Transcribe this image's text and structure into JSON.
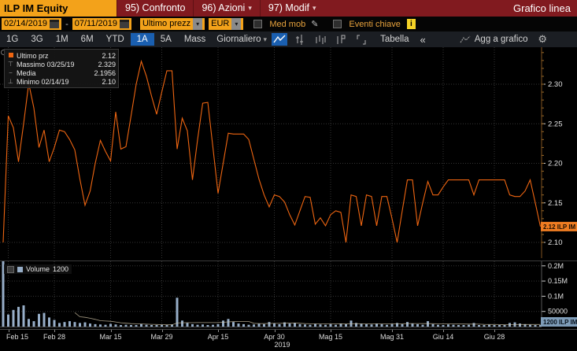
{
  "window": {
    "title_right": "Grafico linea"
  },
  "header": {
    "ticker": "ILP IM Equity",
    "menu": [
      {
        "label": "95) Confronto",
        "dropdown": false
      },
      {
        "label": "96) Azioni",
        "dropdown": true
      },
      {
        "label": "97) Modif",
        "dropdown": true
      }
    ]
  },
  "controls": {
    "date_from": "02/14/2019",
    "range_separator": "-",
    "date_to": "07/11/2019",
    "price_field": "Ultimo prezz",
    "currency": "EUR",
    "med_mob_label": "Med mob",
    "eventi_label": "Eventi chiave"
  },
  "toolbar": {
    "tabs": [
      "1G",
      "3G",
      "1M",
      "6M",
      "YTD",
      "1A",
      "5A",
      "Mass"
    ],
    "selected_tab": "1A",
    "period": "Giornaliero",
    "table_label": "Tabella",
    "add_chart_label": "Agg a grafico"
  },
  "icons": {
    "dropdown": "▾",
    "pencil": "✎",
    "info": "i",
    "collapse": "«",
    "gear": "⚙"
  },
  "legend": {
    "items": [
      {
        "label": "Ultimo prz",
        "value": "2.12"
      },
      {
        "label": "Massimo 03/25/19",
        "value": "2.329"
      },
      {
        "label": "Media",
        "value": "2.1956"
      },
      {
        "label": "Minimo 02/14/19",
        "value": "2.10"
      }
    ]
  },
  "volume_legend": {
    "label": "Volume",
    "value": "1200"
  },
  "price_badge": "2.12 ILP IM",
  "volume_badge": "1200 ILP IM",
  "colors": {
    "series": "#ee6511",
    "badge": "#ef7d22",
    "volume_bars": "#97aec8",
    "volume_badge_bg": "#7e9cb8",
    "accent_amber": "#f3a21a",
    "selected_blue": "#1a5fb0",
    "grid": "#343434"
  },
  "chart_data": {
    "type": "line",
    "title": "ILP IM Equity - Ultimo prezzo, 1A Giornaliero, EUR",
    "year_label": "2019",
    "x_ticks": [
      {
        "label": "Feb 15",
        "day": 1
      },
      {
        "label": "Feb 28",
        "day": 10
      },
      {
        "label": "Mar 15",
        "day": 21
      },
      {
        "label": "Mar 29",
        "day": 31
      },
      {
        "label": "Apr 15",
        "day": 42
      },
      {
        "label": "Apr 30",
        "day": 53
      },
      {
        "label": "Mag 15",
        "day": 64
      },
      {
        "label": "Mag 31",
        "day": 76
      },
      {
        "label": "Giu 14",
        "day": 86
      },
      {
        "label": "Giu 28",
        "day": 96
      }
    ],
    "year_anchor_day": 53,
    "price_axis_ticks": [
      2.3,
      2.25,
      2.2,
      2.15,
      2.1
    ],
    "price_ylim": [
      2.09,
      2.345
    ],
    "last_price": 2.12,
    "max": {
      "date": "03/25/19",
      "value": 2.329
    },
    "min": {
      "date": "02/14/19",
      "value": 2.1
    },
    "mean": 2.1956,
    "last_volume": 1200,
    "volume_axis_ticks": [
      "0.2M",
      "0.15M",
      "0.1M",
      "50000"
    ],
    "volume_tick_values": [
      200000,
      150000,
      100000,
      50000
    ],
    "series_color": "#ee6511",
    "volume_color": "#97aec8",
    "dates": [
      "02/14",
      "02/15",
      "02/18",
      "02/19",
      "02/20",
      "02/21",
      "02/22",
      "02/25",
      "02/26",
      "02/27",
      "02/28",
      "03/01",
      "03/04",
      "03/05",
      "03/06",
      "03/07",
      "03/08",
      "03/11",
      "03/12",
      "03/13",
      "03/14",
      "03/15",
      "03/18",
      "03/19",
      "03/20",
      "03/21",
      "03/22",
      "03/25",
      "03/26",
      "03/27",
      "03/28",
      "03/29",
      "04/01",
      "04/02",
      "04/03",
      "04/04",
      "04/05",
      "04/08",
      "04/09",
      "04/10",
      "04/11",
      "04/12",
      "04/15",
      "04/16",
      "04/17",
      "04/18",
      "04/19",
      "04/22",
      "04/23",
      "04/24",
      "04/25",
      "04/26",
      "04/29",
      "04/30",
      "05/01",
      "05/02",
      "05/03",
      "05/06",
      "05/07",
      "05/08",
      "05/09",
      "05/10",
      "05/13",
      "05/14",
      "05/15",
      "05/16",
      "05/17",
      "05/20",
      "05/21",
      "05/22",
      "05/23",
      "05/24",
      "05/27",
      "05/28",
      "05/29",
      "05/30",
      "05/31",
      "06/03",
      "06/04",
      "06/05",
      "06/06",
      "06/07",
      "06/10",
      "06/11",
      "06/12",
      "06/13",
      "06/14",
      "06/17",
      "06/18",
      "06/19",
      "06/20",
      "06/21",
      "06/24",
      "06/25",
      "06/26",
      "06/27",
      "06/28",
      "07/01",
      "07/02",
      "07/03",
      "07/04",
      "07/05",
      "07/08",
      "07/09",
      "07/10",
      "07/11"
    ],
    "prices": [
      2.1,
      2.26,
      2.245,
      2.202,
      2.25,
      2.301,
      2.27,
      2.22,
      2.242,
      2.202,
      2.22,
      2.242,
      2.24,
      2.23,
      2.217,
      2.18,
      2.147,
      2.165,
      2.2,
      2.229,
      2.215,
      2.203,
      2.265,
      2.218,
      2.221,
      2.26,
      2.3,
      2.329,
      2.31,
      2.285,
      2.262,
      2.29,
      2.317,
      2.317,
      2.218,
      2.257,
      2.241,
      2.179,
      2.23,
      2.276,
      2.277,
      2.22,
      2.162,
      2.2,
      2.238,
      2.237,
      2.237,
      2.237,
      2.23,
      2.205,
      2.18,
      2.16,
      2.145,
      2.16,
      2.158,
      2.151,
      2.135,
      2.122,
      2.14,
      2.158,
      2.157,
      2.123,
      2.131,
      2.121,
      2.135,
      2.14,
      2.138,
      2.1,
      2.16,
      2.158,
      2.121,
      2.16,
      2.158,
      2.121,
      2.158,
      2.158,
      2.13,
      2.1,
      2.14,
      2.179,
      2.179,
      2.121,
      2.15,
      2.177,
      2.16,
      2.16,
      2.17,
      2.179,
      2.179,
      2.179,
      2.179,
      2.179,
      2.16,
      2.179,
      2.179,
      2.179,
      2.179,
      2.179,
      2.179,
      2.16,
      2.158,
      2.158,
      2.165,
      2.179,
      2.15,
      2.12
    ],
    "volumes": [
      220000,
      40000,
      55000,
      65000,
      70000,
      25000,
      18000,
      42000,
      45000,
      30000,
      22000,
      12000,
      15000,
      18000,
      15000,
      12000,
      14000,
      10000,
      8000,
      7000,
      6000,
      9000,
      7000,
      5000,
      6000,
      5000,
      4000,
      8000,
      6000,
      5000,
      4000,
      6000,
      5000,
      7000,
      95000,
      20000,
      12000,
      8000,
      6000,
      7000,
      5000,
      6000,
      8000,
      20000,
      25000,
      15000,
      10000,
      8000,
      6000,
      7000,
      9000,
      8000,
      15000,
      10000,
      8000,
      14000,
      10000,
      12000,
      8000,
      7000,
      6000,
      9000,
      7000,
      6000,
      8000,
      6000,
      10000,
      8000,
      20000,
      12000,
      9000,
      8000,
      7000,
      10000,
      8000,
      6000,
      9000,
      12000,
      8000,
      15000,
      10000,
      8000,
      6000,
      18000,
      8000,
      6000,
      5000,
      7000,
      6000,
      5000,
      4000,
      6000,
      12000,
      5000,
      4000,
      6000,
      5000,
      4000,
      5000,
      12000,
      14000,
      10000,
      8000,
      6000,
      5000,
      1200
    ]
  }
}
